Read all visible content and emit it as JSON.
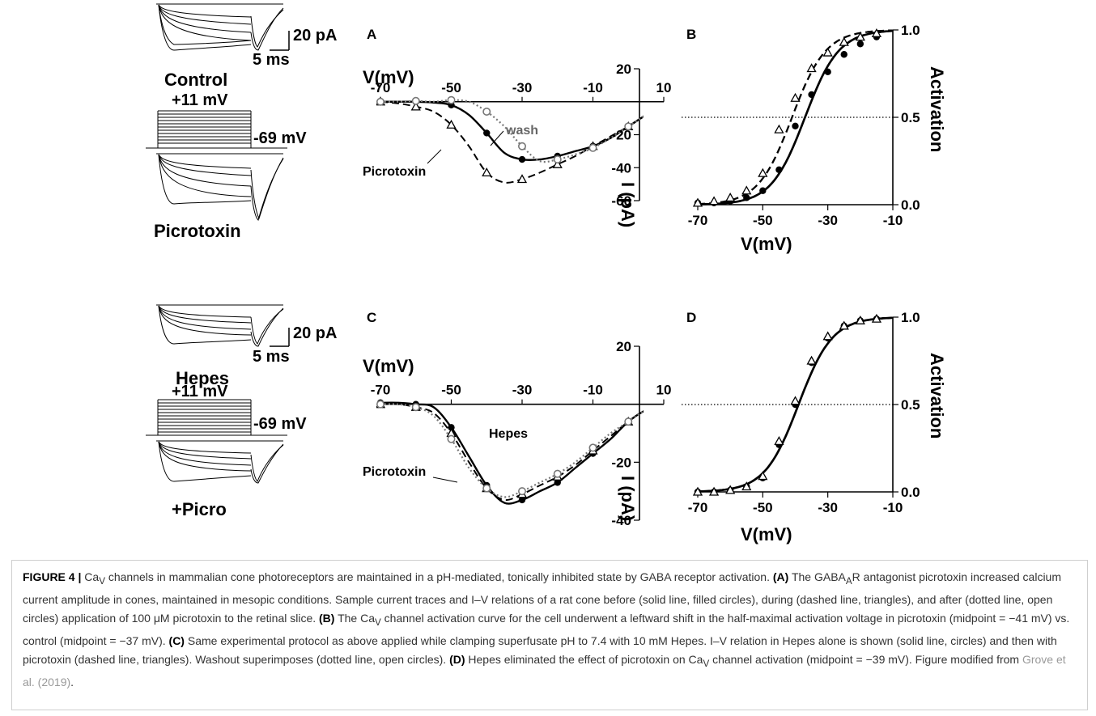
{
  "traces": {
    "top": {
      "scale_amp": "20 pA",
      "scale_time": "5 ms",
      "label_before": "Control",
      "step_top": "+11 mV",
      "step_bottom": "-69 mV",
      "label_after": "Picrotoxin"
    },
    "bottom": {
      "scale_amp": "20 pA",
      "scale_time": "5 ms",
      "label_before": "Hepes",
      "step_top": "+11 mV",
      "step_bottom": "-69 mV",
      "label_after": "+Picro"
    }
  },
  "panels": {
    "A": {
      "letter": "A",
      "xaxis_label": "V(mV)",
      "yaxis_label": "I (pA)",
      "annot_wash": "wash",
      "annot_picro": "Picrotoxin"
    },
    "B": {
      "letter": "B",
      "xaxis_label": "V(mV)",
      "yaxis_label": "Activation"
    },
    "C": {
      "letter": "C",
      "xaxis_label": "V(mV)",
      "yaxis_label": "I (pA)",
      "annot_hepes": "Hepes",
      "annot_picro": "Picrotoxin"
    },
    "D": {
      "letter": "D",
      "xaxis_label": "V(mV)",
      "yaxis_label": "Activation"
    }
  },
  "chart_data": [
    {
      "panel": "A",
      "type": "line",
      "x_ticks": [
        -70,
        -50,
        -30,
        -10,
        10
      ],
      "y_ticks": [
        20,
        -20,
        -40,
        -60
      ],
      "xlim": [
        -70,
        10
      ],
      "ylim": [
        -60,
        20
      ],
      "series": [
        {
          "style": "solid, filled circles",
          "x": [
            -70,
            -65,
            -60,
            -55,
            -50,
            -45,
            -40,
            -35,
            -30,
            -25,
            -20,
            -15,
            -10,
            -5,
            0,
            5,
            10
          ],
          "y": [
            0,
            0,
            0,
            -0.5,
            -2,
            -8,
            -19,
            -31,
            -35,
            -35,
            -33,
            -30,
            -27,
            -22,
            -15,
            -8,
            -1
          ]
        },
        {
          "style": "dashed, open triangles",
          "x": [
            -70,
            -65,
            -60,
            -55,
            -50,
            -45,
            -40,
            -35,
            -30,
            -25,
            -20,
            -15,
            -10,
            -5,
            0,
            5,
            10
          ],
          "y": [
            0,
            -1,
            -3,
            -6,
            -14,
            -27,
            -43,
            -49,
            -47,
            -43,
            -38,
            -33,
            -27,
            -21,
            -15,
            -8,
            -2
          ]
        },
        {
          "style": "dotted, open circles",
          "x": [
            -70,
            -65,
            -60,
            -55,
            -50,
            -45,
            -40,
            -35,
            -30,
            -25,
            -20,
            -15,
            -10,
            -5,
            0,
            5,
            10
          ],
          "y": [
            0,
            0,
            0.5,
            0,
            1,
            0,
            -6,
            -15,
            -27,
            -36,
            -35,
            -32,
            -28,
            -22,
            -15,
            -8,
            -1
          ]
        }
      ]
    },
    {
      "panel": "B",
      "type": "line",
      "x_ticks": [
        -70,
        -50,
        -30,
        -10
      ],
      "y_ticks": [
        0.0,
        0.5,
        1.0
      ],
      "xlim": [
        -70,
        -10
      ],
      "ylim": [
        0,
        1
      ],
      "series": [
        {
          "style": "solid, filled circles",
          "midpoint": -37,
          "x": [
            -70,
            -65,
            -60,
            -55,
            -50,
            -45,
            -40,
            -35,
            -30,
            -25,
            -20,
            -15
          ],
          "y": [
            0.01,
            0.01,
            0.02,
            0.04,
            0.08,
            0.2,
            0.45,
            0.63,
            0.76,
            0.86,
            0.92,
            0.96
          ]
        },
        {
          "style": "dashed, open triangles",
          "midpoint": -41,
          "x": [
            -70,
            -65,
            -60,
            -55,
            -50,
            -45,
            -40,
            -35,
            -30,
            -25,
            -20,
            -15
          ],
          "y": [
            0.01,
            0.02,
            0.04,
            0.08,
            0.18,
            0.43,
            0.61,
            0.78,
            0.87,
            0.93,
            0.96,
            0.98
          ]
        }
      ]
    },
    {
      "panel": "C",
      "type": "line",
      "x_ticks": [
        -70,
        -50,
        -30,
        -10,
        10
      ],
      "y_ticks": [
        20,
        -20,
        -40
      ],
      "xlim": [
        -70,
        10
      ],
      "ylim": [
        -40,
        20
      ],
      "series": [
        {
          "style": "solid, filled circles",
          "x": [
            -70,
            -65,
            -60,
            -55,
            -50,
            -45,
            -40,
            -35,
            -30,
            -25,
            -20,
            -15,
            -10,
            -5,
            0,
            5,
            10
          ],
          "y": [
            0.5,
            0.5,
            0,
            -1,
            -8,
            -18,
            -28,
            -34,
            -33,
            -30,
            -27,
            -22,
            -17,
            -12,
            -6,
            -2,
            0
          ]
        },
        {
          "style": "dashed, open triangles",
          "x": [
            -70,
            -65,
            -60,
            -55,
            -50,
            -45,
            -40,
            -35,
            -30,
            -25,
            -20,
            -15,
            -10,
            -5,
            0,
            5,
            10
          ],
          "y": [
            0,
            0,
            -1,
            -3,
            -10,
            -20,
            -29,
            -33,
            -31,
            -28,
            -25,
            -21,
            -16,
            -11,
            -6,
            -2,
            0
          ]
        },
        {
          "style": "dotted, open circles",
          "x": [
            -70,
            -65,
            -60,
            -55,
            -50,
            -45,
            -40,
            -35,
            -30,
            -25,
            -20,
            -15,
            -10,
            -5,
            0,
            5,
            10
          ],
          "y": [
            0,
            0,
            -1,
            -4,
            -12,
            -22,
            -29,
            -32,
            -30,
            -27,
            -24,
            -20,
            -15,
            -10,
            -6,
            -2,
            0
          ]
        }
      ]
    },
    {
      "panel": "D",
      "type": "line",
      "x_ticks": [
        -70,
        -50,
        -30,
        -10
      ],
      "y_ticks": [
        0.0,
        0.5,
        1.0
      ],
      "xlim": [
        -70,
        -10
      ],
      "ylim": [
        0,
        1
      ],
      "series": [
        {
          "style": "solid, filled circles",
          "midpoint": -39,
          "x": [
            -70,
            -65,
            -60,
            -55,
            -50,
            -45,
            -40,
            -35,
            -30,
            -25,
            -20,
            -15
          ],
          "y": [
            0,
            0,
            0.01,
            0.03,
            0.08,
            0.27,
            0.5,
            0.74,
            0.88,
            0.95,
            0.98,
            0.99
          ]
        },
        {
          "style": "dashed, open triangles",
          "midpoint": -39,
          "x": [
            -70,
            -65,
            -60,
            -55,
            -50,
            -45,
            -40,
            -35,
            -30,
            -25,
            -20,
            -15
          ],
          "y": [
            0,
            0,
            0.01,
            0.03,
            0.09,
            0.29,
            0.52,
            0.75,
            0.89,
            0.95,
            0.98,
            0.99
          ]
        }
      ]
    }
  ],
  "caption": {
    "figure_label": "FIGURE 4",
    "sep": " | ",
    "text_1": " channels in mammalian cone photoreceptors are maintained in a pH-mediated, tonically inhibited state by GABA receptor activation. ",
    "A_label": "(A)",
    "text_A": " The GABA",
    "text_A2": "R antagonist picrotoxin increased calcium current amplitude in cones, maintained in mesopic conditions. Sample current traces and I–V relations of a rat cone before (solid line, filled circles), during (dashed line, triangles), and after (dotted line, open circles) application of 100 μM picrotoxin to the retinal slice. ",
    "B_label": "(B)",
    "text_B1": " The ",
    "text_B2": " channel activation curve for the cell underwent a leftward shift in the half-maximal activation voltage in picrotoxin (midpoint = −41 mV) vs. control (midpoint = −37 mV). ",
    "C_label": "(C)",
    "text_C": " Same experimental protocol as above applied while clamping superfusate pH to 7.4 with 10 mM Hepes. I–V relation in Hepes alone is shown (solid line, circles) and then with picrotoxin (dashed line, triangles). Washout superimposes (dotted line, open circles). ",
    "D_label": "(D)",
    "text_D1": " Hepes eliminated the effect of picrotoxin on ",
    "text_D2": " channel activation (midpoint = −39 mV). Figure modified from ",
    "ref": "Grove et al. (2019)",
    "text_end": ".",
    "ca_base": "Ca",
    "ca_sub": "V",
    "gaba_sub": "A"
  }
}
